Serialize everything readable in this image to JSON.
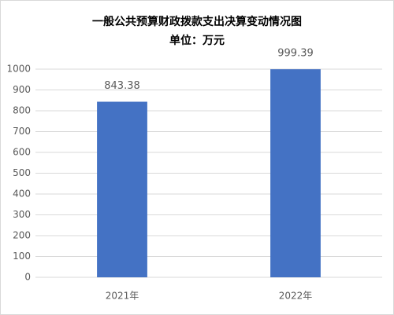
{
  "chart_data": {
    "type": "bar",
    "title": "一般公共预算财政拨款支出决算变动情况图",
    "subtitle": "单位：万元",
    "categories": [
      "2021年",
      "2022年"
    ],
    "values": [
      843.38,
      999.39
    ],
    "color": "#4472c4",
    "ylim": [
      0,
      1000
    ],
    "yticks": [
      0,
      100,
      200,
      300,
      400,
      500,
      600,
      700,
      800,
      900,
      1000
    ],
    "grid": true
  }
}
